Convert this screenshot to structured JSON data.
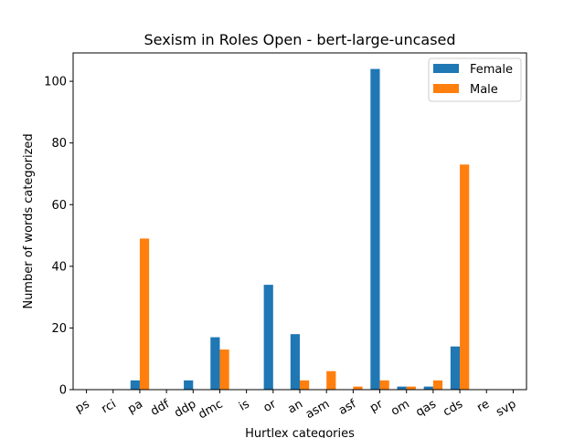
{
  "chart_data": {
    "type": "bar",
    "title": "Sexism in Roles Open - bert-large-uncased",
    "xlabel": "Hurtlex categories",
    "ylabel": "Number of words categorized",
    "categories": [
      "ps",
      "rci",
      "pa",
      "ddf",
      "ddp",
      "dmc",
      "is",
      "or",
      "an",
      "asm",
      "asf",
      "pr",
      "om",
      "qas",
      "cds",
      "re",
      "svp"
    ],
    "series": [
      {
        "name": "Female",
        "color": "#1f77b4",
        "values": [
          0,
          0,
          3,
          0,
          3,
          17,
          0,
          34,
          18,
          0,
          0,
          104,
          1,
          1,
          14,
          0,
          0
        ]
      },
      {
        "name": "Male",
        "color": "#ff7f0e",
        "values": [
          0,
          0,
          49,
          0,
          0,
          13,
          0,
          0,
          3,
          6,
          1,
          3,
          1,
          3,
          73,
          0,
          0
        ]
      }
    ],
    "ylim": [
      0,
      109.2
    ],
    "yticks": [
      0,
      20,
      40,
      60,
      80,
      100
    ],
    "grid": false,
    "legend_position": "top-right"
  }
}
